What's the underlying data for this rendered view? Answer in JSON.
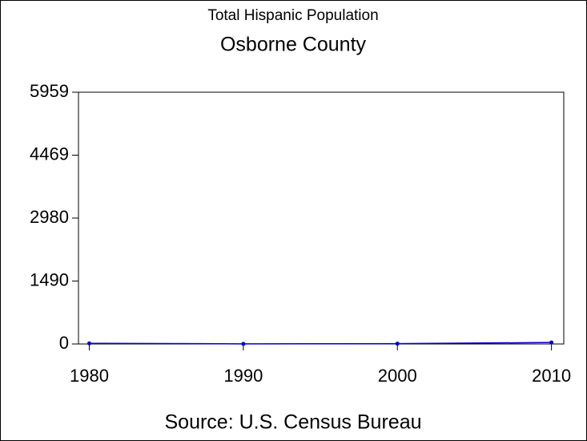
{
  "chart_data": {
    "type": "line",
    "title": "Total Hispanic Population",
    "subtitle": "Osborne County",
    "caption": "Source: U.S. Census Bureau",
    "x": [
      1980,
      1990,
      2000,
      2010
    ],
    "series": [
      {
        "name": "Hispanic Population",
        "color": "#0000cc",
        "values": [
          15,
          3,
          7,
          35
        ]
      }
    ],
    "xlim": [
      1979.3,
      2010.8
    ],
    "xticks": [
      1980,
      1990,
      2000,
      2010
    ],
    "ylim": [
      0,
      5959
    ],
    "yticks": [
      0,
      1490,
      2980,
      4469,
      5959
    ]
  }
}
